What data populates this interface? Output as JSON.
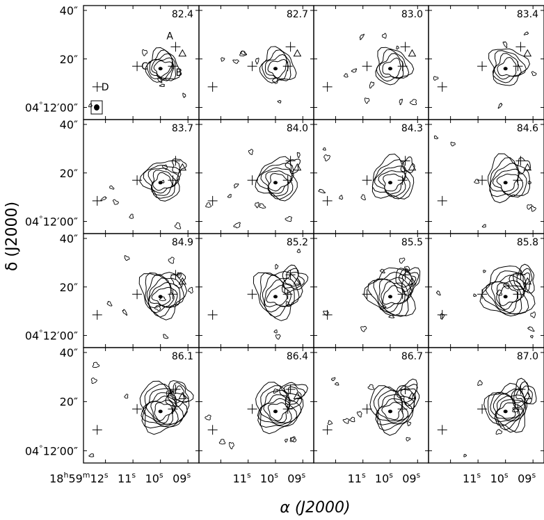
{
  "chart_data": {
    "type": "contour",
    "grid": {
      "rows": 4,
      "cols": 4
    },
    "xlabel": "α (J2000)",
    "ylabel": "δ (J2000)",
    "x_ticks": [
      {
        "h": "18",
        "m": "59",
        "s": "12",
        "show_hm": true
      },
      {
        "s": "11"
      },
      {
        "s": "10"
      },
      {
        "s": "09"
      }
    ],
    "y_ticks": [
      {
        "label": "40″",
        "value": 40
      },
      {
        "label": "20″",
        "value": 20
      },
      {
        "label": "04°12′00″",
        "deg": "04",
        "min": "12",
        "sec": "00",
        "value": 0
      }
    ],
    "y_range": [
      -5,
      42
    ],
    "x_range": [
      12.8,
      8.6
    ],
    "panels": [
      {
        "velocity": "82.4"
      },
      {
        "velocity": "82.7"
      },
      {
        "velocity": "83.0"
      },
      {
        "velocity": "83.4"
      },
      {
        "velocity": "83.7"
      },
      {
        "velocity": "84.0"
      },
      {
        "velocity": "84.3"
      },
      {
        "velocity": "84.6"
      },
      {
        "velocity": "84.9"
      },
      {
        "velocity": "85.2"
      },
      {
        "velocity": "85.5"
      },
      {
        "velocity": "85.8"
      },
      {
        "velocity": "86.1"
      },
      {
        "velocity": "86.4"
      },
      {
        "velocity": "86.7"
      },
      {
        "velocity": "87.0"
      }
    ],
    "markers": [
      {
        "name": "A",
        "symbol": "cross",
        "ra_s": 9.45,
        "dec": 25
      },
      {
        "name": "B",
        "symbol": "cross",
        "ra_s": 9.55,
        "dec": 17
      },
      {
        "name": "C",
        "symbol": "cross",
        "ra_s": 10.85,
        "dec": 17
      },
      {
        "name": "D",
        "symbol": "cross",
        "ra_s": 12.3,
        "dec": 8.5
      },
      {
        "name": "",
        "symbol": "triangle",
        "ra_s": 9.2,
        "dec": 22
      }
    ],
    "marker_labels_panel": 0,
    "peak": {
      "ra_s": 10.0,
      "dec": 16
    },
    "beam_panel": 0
  }
}
